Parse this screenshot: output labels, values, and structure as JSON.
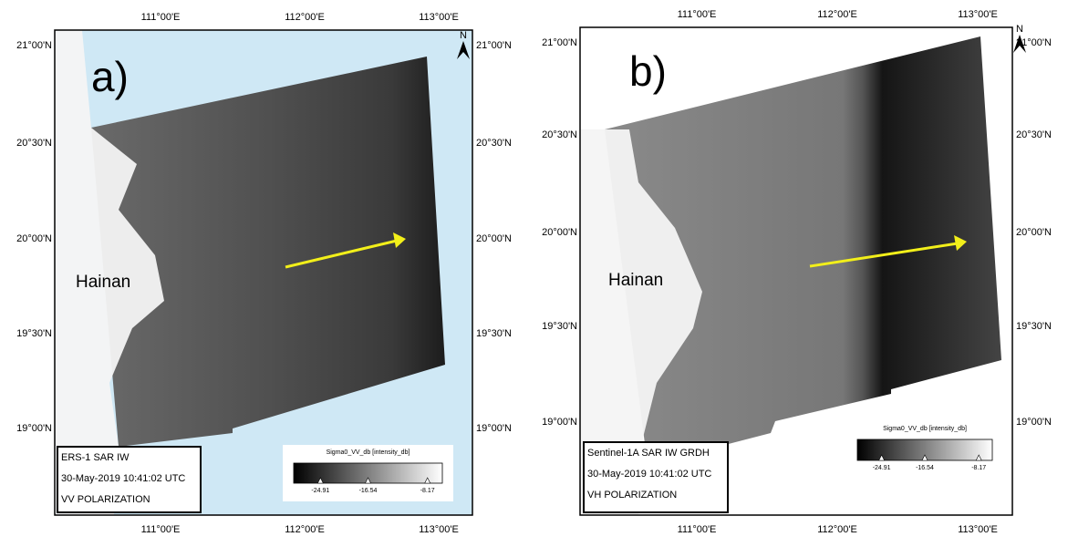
{
  "panels": [
    {
      "label": "a)",
      "island": "Hainan",
      "north": "N",
      "lon_ticks": [
        "111°00'E",
        "112°00'E",
        "113°00'E"
      ],
      "lat_ticks": [
        "21°00'N",
        "20°30'N",
        "20°00'N",
        "19°30'N",
        "19°00'N"
      ],
      "info": [
        "ERS-1 SAR IW",
        "30-May-2019 10:41:02 UTC",
        "VV POLARIZATION"
      ],
      "colorbar": {
        "title": "Sigma0_VV_db [intensity_db]",
        "ticks": [
          "-24.91",
          "-16.54",
          "-8.17"
        ]
      }
    },
    {
      "label": "b)",
      "island": "Hainan",
      "north": "N",
      "lon_ticks": [
        "111°00'E",
        "112°00'E",
        "113°00'E"
      ],
      "lat_ticks": [
        "21°00'N",
        "20°30'N",
        "20°00'N",
        "19°30'N",
        "19°00'N"
      ],
      "info": [
        "Sentinel-1A SAR IW GRDH",
        "30-May-2019 10:41:02 UTC",
        "VH POLARIZATION"
      ],
      "colorbar": {
        "title": "Sigma0_VV_db [intensity_db]",
        "ticks": [
          "-24.91",
          "-16.54",
          "-8.17"
        ]
      }
    }
  ]
}
